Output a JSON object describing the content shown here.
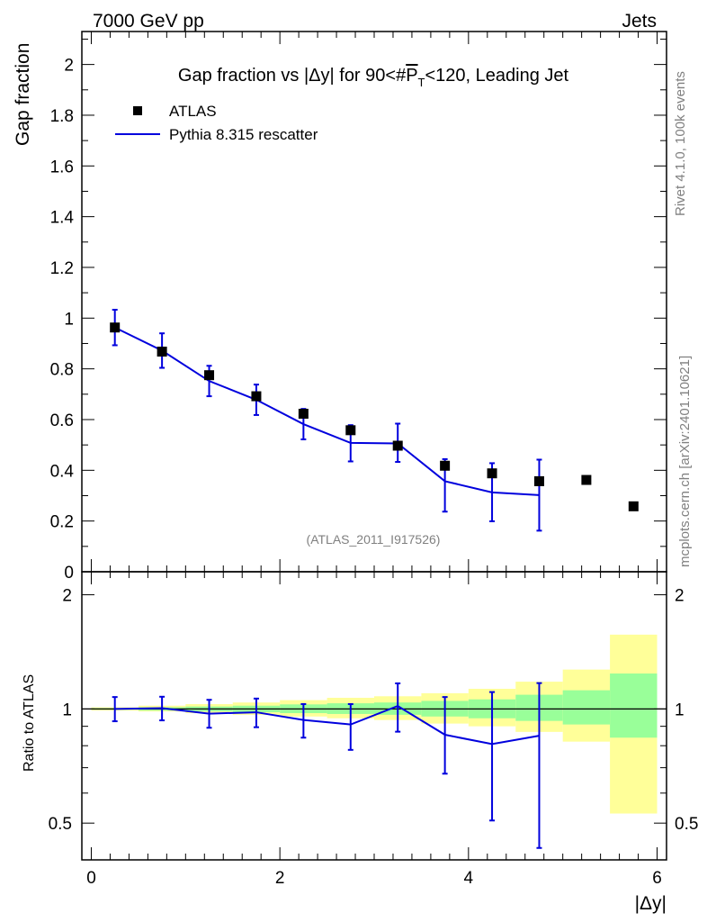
{
  "header": {
    "left": "7000 GeV pp",
    "right": "Jets"
  },
  "side_labels": {
    "rivet": "Rivet 4.1.0,  100k events",
    "mcplots": "mcplots.cern.ch [arXiv:2401.10621]"
  },
  "colors": {
    "data": "#000000",
    "mc": "#0000dd",
    "band_outer": "#ffff99",
    "band_inner": "#99ff99"
  },
  "chart_data": [
    {
      "type": "scatter",
      "title_parts": {
        "pre": "Gap fraction vs |Δy| for 90<#",
        "p": "P",
        "sub": "T",
        "post": "<120, Leading Jet"
      },
      "ylabel": "Gap fraction",
      "xlabel": "|Δy|",
      "watermark": "(ATLAS_2011_I917526)",
      "xlim": [
        -0.1,
        6.1
      ],
      "ylim": [
        0,
        2.13
      ],
      "yticks": [
        "0",
        "0.2",
        "0.4",
        "0.6",
        "0.8",
        "1",
        "1.2",
        "1.4",
        "1.6",
        "1.8",
        "2"
      ],
      "legend": [
        {
          "label": "ATLAS",
          "style": "marker"
        },
        {
          "label": "Pythia 8.315 rescatter",
          "style": "line"
        }
      ],
      "series": [
        {
          "name": "ATLAS",
          "x": [
            0.25,
            0.75,
            1.25,
            1.75,
            2.25,
            2.75,
            3.25,
            3.75,
            4.25,
            4.75,
            5.25,
            5.75
          ],
          "values": [
            0.963,
            0.868,
            0.775,
            0.692,
            0.623,
            0.558,
            0.497,
            0.418,
            0.388,
            0.357,
            0.362,
            0.258
          ]
        },
        {
          "name": "Pythia 8.315 rescatter",
          "x": [
            0.25,
            0.75,
            1.25,
            1.75,
            2.25,
            2.75,
            3.25,
            3.75,
            4.25,
            4.75
          ],
          "values": [
            0.963,
            0.872,
            0.752,
            0.678,
            0.582,
            0.508,
            0.506,
            0.357,
            0.313,
            0.302
          ],
          "err_lo": [
            0.07,
            0.068,
            0.06,
            0.06,
            0.06,
            0.073,
            0.073,
            0.12,
            0.114,
            0.14
          ],
          "err_hi": [
            0.07,
            0.068,
            0.06,
            0.06,
            0.06,
            0.07,
            0.078,
            0.087,
            0.115,
            0.14
          ]
        }
      ]
    },
    {
      "type": "ratio",
      "ylabel": "Ratio to ATLAS",
      "xlabel": "|Δy|",
      "xlim": [
        -0.1,
        6.1
      ],
      "ylim_log": [
        0.4,
        2.3
      ],
      "xticks": [
        "0",
        "2",
        "4",
        "6"
      ],
      "yticks": [
        "0.5",
        "1",
        "2"
      ],
      "bins": [
        0,
        0.5,
        1,
        1.5,
        2,
        2.5,
        3,
        3.5,
        4,
        4.5,
        5,
        5.5,
        6
      ],
      "band_inner": {
        "lo": [
          0.995,
          0.99,
          0.985,
          0.98,
          0.975,
          0.97,
          0.965,
          0.955,
          0.945,
          0.93,
          0.91,
          0.84
        ],
        "hi": [
          1.005,
          1.01,
          1.015,
          1.02,
          1.028,
          1.035,
          1.04,
          1.05,
          1.06,
          1.09,
          1.12,
          1.24
        ]
      },
      "band_outer": {
        "lo": [
          0.99,
          0.985,
          0.975,
          0.965,
          0.955,
          0.945,
          0.935,
          0.915,
          0.9,
          0.87,
          0.82,
          0.53
        ],
        "hi": [
          1.01,
          1.02,
          1.03,
          1.04,
          1.055,
          1.07,
          1.08,
          1.1,
          1.13,
          1.18,
          1.27,
          1.57
        ]
      },
      "series": [
        {
          "name": "Pythia 8.315 rescatter",
          "x": [
            0.25,
            0.75,
            1.25,
            1.75,
            2.25,
            2.75,
            3.25,
            3.75,
            4.25,
            4.75
          ],
          "values": [
            1.0,
            1.005,
            0.972,
            0.98,
            0.935,
            0.91,
            1.018,
            0.855,
            0.808,
            0.85
          ],
          "err_lo": [
            0.072,
            0.072,
            0.08,
            0.085,
            0.095,
            0.13,
            0.147,
            0.18,
            0.3,
            0.42
          ],
          "err_hi": [
            0.075,
            0.072,
            0.085,
            0.085,
            0.095,
            0.12,
            0.15,
            0.22,
            0.3,
            0.32
          ]
        }
      ]
    }
  ]
}
